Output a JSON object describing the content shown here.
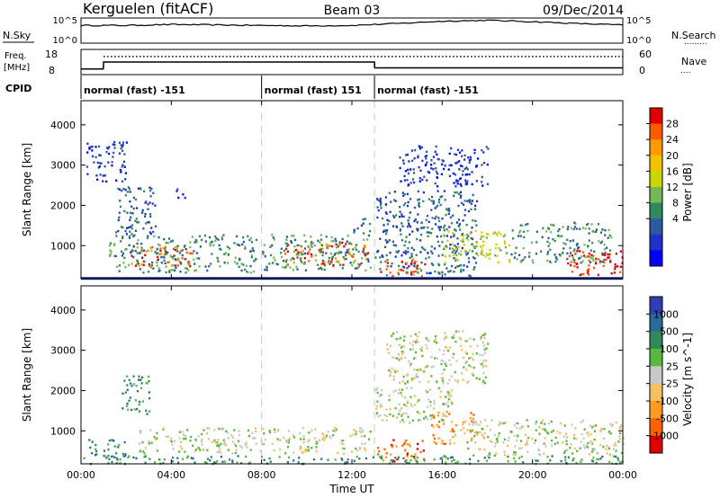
{
  "header": {
    "station": "Kerguelen (fitACF)",
    "beam": "Beam 03",
    "date": "09/Dec/2014"
  },
  "noise_panel": {
    "left_label": "N.Sky",
    "right_label": "N.Search",
    "right_label_dots": ".........",
    "left_ticks": [
      "10^5",
      "10^0"
    ],
    "right_ticks": [
      "10^5",
      "10^0"
    ]
  },
  "freq_panel": {
    "left_label_line1": "Freq.",
    "left_label_line2": "[MHz]",
    "right_label": "Nave",
    "right_label_dots": "....",
    "left_ticks": [
      "18",
      "8"
    ],
    "right_ticks": [
      "60",
      "0"
    ]
  },
  "cpid": {
    "label": "CPID",
    "segments": [
      {
        "text": "normal (fast) -151",
        "start_hour": 0
      },
      {
        "text": "normal (fast) 151",
        "start_hour": 8
      },
      {
        "text": "normal (fast) -151",
        "start_hour": 13
      }
    ]
  },
  "colors": {
    "freq_line": "#000000",
    "guide_line": "#c8c8c8",
    "ground_band": "#1a2a9a"
  },
  "chart_data": [
    {
      "type": "line",
      "name": "noise",
      "x_unit": "hour UT",
      "series": [
        {
          "name": "N.Sky",
          "x": [
            0,
            2,
            4,
            6,
            8,
            10,
            12,
            14,
            16,
            18,
            20,
            22,
            24
          ],
          "values": [
            3.6,
            3.6,
            3.8,
            3.7,
            3.6,
            3.5,
            3.6,
            4.0,
            4.5,
            4.7,
            4.4,
            4.0,
            3.7
          ]
        }
      ],
      "ylim": [
        0,
        5
      ]
    },
    {
      "type": "line",
      "name": "frequency",
      "x_unit": "hour UT",
      "series": [
        {
          "name": "Freq.",
          "x": [
            0,
            0.99,
            1.0,
            13.0,
            13.01,
            24
          ],
          "values": [
            10.0,
            10.0,
            13.0,
            13.0,
            10.5,
            10.5
          ]
        },
        {
          "name": "Nave",
          "x": [
            0,
            1.0,
            1.01,
            24
          ],
          "values": [
            28,
            28,
            44,
            44
          ]
        }
      ],
      "ylim": [
        8,
        18
      ]
    },
    {
      "type": "heatmap",
      "name": "power",
      "title": "",
      "xlabel": "",
      "ylabel": "Slant Range [km]",
      "x_ticks": [
        "00:00",
        "04:00",
        "08:00",
        "12:00",
        "16:00",
        "20:00",
        "00:00"
      ],
      "y_ticks": [
        1000,
        2000,
        3000,
        4000
      ],
      "xlim": [
        0,
        24
      ],
      "ylim": [
        180,
        4600
      ],
      "colorbar": {
        "label": "Power [dB]",
        "ticks": [
          "28",
          "24",
          "20",
          "16",
          "12",
          "8",
          "4"
        ],
        "colors": [
          "#e00000",
          "#ff5a00",
          "#ff9b00",
          "#f0c400",
          "#c9d600",
          "#74b85a",
          "#2e8a5a",
          "#2a5aa0",
          "#1f32c8",
          "#0000ff"
        ]
      },
      "regions": [
        {
          "t0": 2.2,
          "t1": 5.0,
          "r0": 500,
          "r1": 1050,
          "level": 0.85
        },
        {
          "t0": 1.2,
          "t1": 7.8,
          "r0": 350,
          "r1": 1300,
          "level": 0.3
        },
        {
          "t0": 4.2,
          "t1": 4.8,
          "r0": 2200,
          "r1": 2450,
          "level": 0.15
        },
        {
          "t0": 0.2,
          "t1": 2.0,
          "r0": 2600,
          "r1": 3600,
          "level": 0.15
        },
        {
          "t0": 1.5,
          "t1": 3.3,
          "r0": 1300,
          "r1": 2500,
          "level": 0.2
        },
        {
          "t0": 9.0,
          "t1": 12.7,
          "r0": 500,
          "r1": 1100,
          "level": 0.9
        },
        {
          "t0": 8.0,
          "t1": 12.8,
          "r0": 400,
          "r1": 1300,
          "level": 0.3
        },
        {
          "t0": 12.0,
          "t1": 12.8,
          "r0": 1300,
          "r1": 1700,
          "level": 0.25
        },
        {
          "t0": 13.0,
          "t1": 17.5,
          "r0": 250,
          "r1": 2400,
          "level": 0.25
        },
        {
          "t0": 13.2,
          "t1": 15.2,
          "r0": 250,
          "r1": 700,
          "level": 0.9
        },
        {
          "t0": 16.0,
          "t1": 19.0,
          "r0": 600,
          "r1": 1400,
          "level": 0.6
        },
        {
          "t0": 14.0,
          "t1": 18.0,
          "r0": 2500,
          "r1": 3500,
          "level": 0.1
        },
        {
          "t0": 19.0,
          "t1": 23.5,
          "r0": 600,
          "r1": 1600,
          "level": 0.3
        },
        {
          "t0": 21.5,
          "t1": 24.0,
          "r0": 250,
          "r1": 900,
          "level": 0.95
        }
      ]
    },
    {
      "type": "heatmap",
      "name": "velocity",
      "title": "",
      "xlabel": "Time UT",
      "ylabel": "Slant Range [km]",
      "x_ticks": [
        "00:00",
        "04:00",
        "08:00",
        "12:00",
        "16:00",
        "20:00",
        "00:00"
      ],
      "y_ticks": [
        1000,
        2000,
        3000,
        4000
      ],
      "xlim": [
        0,
        24
      ],
      "ylim": [
        180,
        4600
      ],
      "colorbar": {
        "label": "Velocity [m s^-1]",
        "ticks": [
          "1000",
          "500",
          "100",
          "25",
          "-25",
          "-100",
          "-500",
          "-1000"
        ],
        "colors": [
          "#3040b0",
          "#2a6a9a",
          "#2f8a5a",
          "#5ab840",
          "#c8c8c8",
          "#f5c060",
          "#ff9b20",
          "#ff6000",
          "#e00000"
        ]
      },
      "regions": [
        {
          "t0": 2.5,
          "t1": 12.8,
          "r0": 450,
          "r1": 1100,
          "level": 0.5
        },
        {
          "t0": 0.3,
          "t1": 2.0,
          "r0": 300,
          "r1": 800,
          "level": 0.3
        },
        {
          "t0": 1.8,
          "t1": 3.0,
          "r0": 1400,
          "r1": 2400,
          "level": 0.2
        },
        {
          "t0": 13.0,
          "t1": 16.5,
          "r0": 1200,
          "r1": 2100,
          "level": 0.5
        },
        {
          "t0": 13.1,
          "t1": 15.2,
          "r0": 250,
          "r1": 800,
          "level": 0.85
        },
        {
          "t0": 15.5,
          "t1": 17.5,
          "r0": 700,
          "r1": 1500,
          "level": 0.75
        },
        {
          "t0": 17.0,
          "t1": 24.0,
          "r0": 400,
          "r1": 1300,
          "level": 0.5
        },
        {
          "t0": 13.5,
          "t1": 18.0,
          "r0": 2200,
          "r1": 3500,
          "level": 0.45
        },
        {
          "t0": 0.0,
          "t1": 24.0,
          "r0": 200,
          "r1": 400,
          "level": 0.3
        }
      ]
    }
  ]
}
